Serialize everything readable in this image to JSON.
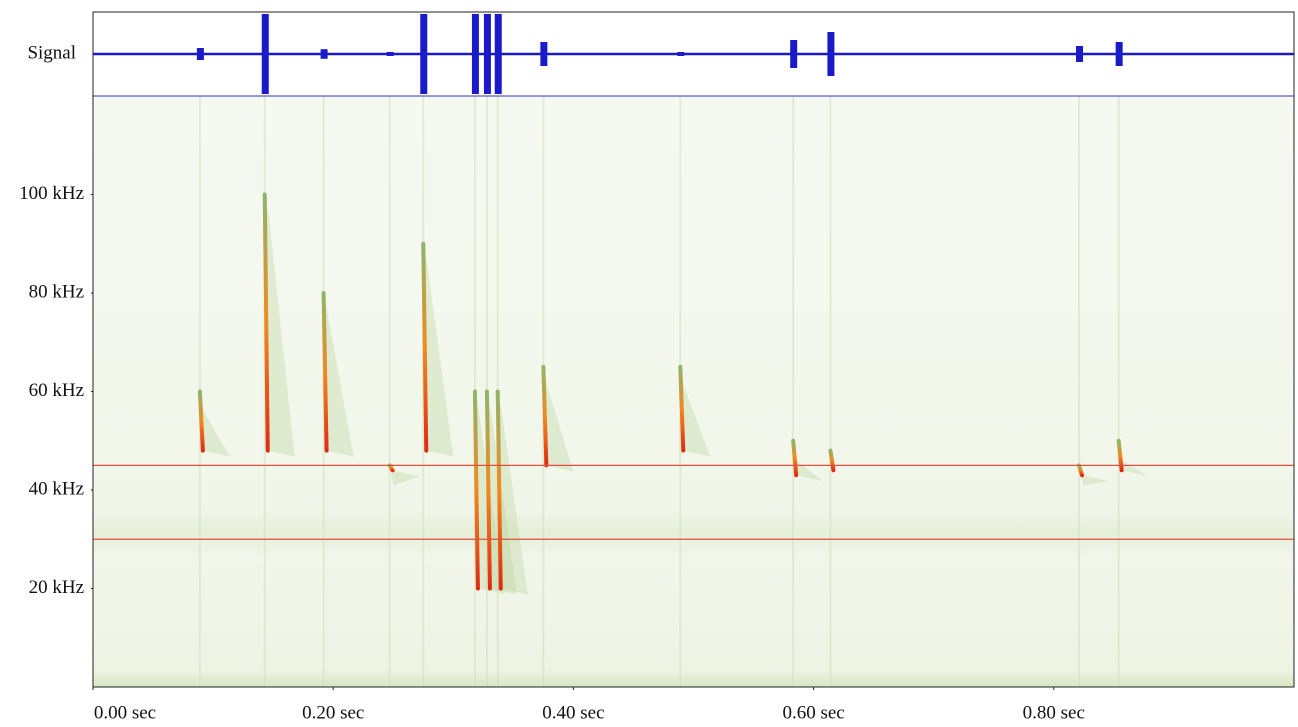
{
  "chart_data": {
    "type": "spectrogram",
    "signal_label": "Signal",
    "xlim": [
      0,
      1.0
    ],
    "ylim": [
      0,
      120
    ],
    "signal_lim": [
      -1,
      1
    ],
    "xticks": [
      {
        "value": 0,
        "label": "0.00 sec"
      },
      {
        "value": 0.2,
        "label": "0.20 sec"
      },
      {
        "value": 0.4,
        "label": "0.40 sec"
      },
      {
        "value": 0.6,
        "label": "0.60 sec"
      },
      {
        "value": 0.8,
        "label": "0.80 sec"
      }
    ],
    "yticks": [
      {
        "value": 20,
        "label": "20 kHz"
      },
      {
        "value": 40,
        "label": "40 kHz"
      },
      {
        "value": 60,
        "label": "60 kHz"
      },
      {
        "value": 80,
        "label": "80 kHz"
      },
      {
        "value": 100,
        "label": "100 kHz"
      }
    ],
    "markers": [
      45,
      30
    ],
    "marker_color": "#e0503c",
    "signal_color": "#1a1ac8",
    "pulses": [
      {
        "t": 0.089,
        "f_high": 60,
        "f_low": 48,
        "amp": 0.15
      },
      {
        "t": 0.143,
        "f_high": 100,
        "f_low": 48,
        "amp": 1.0
      },
      {
        "t": 0.192,
        "f_high": 80,
        "f_low": 48,
        "amp": 0.12
      },
      {
        "t": 0.247,
        "f_high": 45,
        "f_low": 44,
        "amp": 0.05
      },
      {
        "t": 0.275,
        "f_high": 90,
        "f_low": 48,
        "amp": 1.0
      },
      {
        "t": 0.318,
        "f_high": 60,
        "f_low": 20,
        "amp": 1.0
      },
      {
        "t": 0.328,
        "f_high": 60,
        "f_low": 20,
        "amp": 1.0
      },
      {
        "t": 0.337,
        "f_high": 60,
        "f_low": 20,
        "amp": 1.0
      },
      {
        "t": 0.375,
        "f_high": 65,
        "f_low": 45,
        "amp": 0.3
      },
      {
        "t": 0.489,
        "f_high": 65,
        "f_low": 48,
        "amp": 0.05
      },
      {
        "t": 0.583,
        "f_high": 50,
        "f_low": 43,
        "amp": 0.35
      },
      {
        "t": 0.614,
        "f_high": 48,
        "f_low": 44,
        "amp": 0.55
      },
      {
        "t": 0.821,
        "f_high": 45,
        "f_low": 43,
        "amp": 0.2
      },
      {
        "t": 0.854,
        "f_high": 50,
        "f_low": 44,
        "amp": 0.3
      }
    ]
  }
}
